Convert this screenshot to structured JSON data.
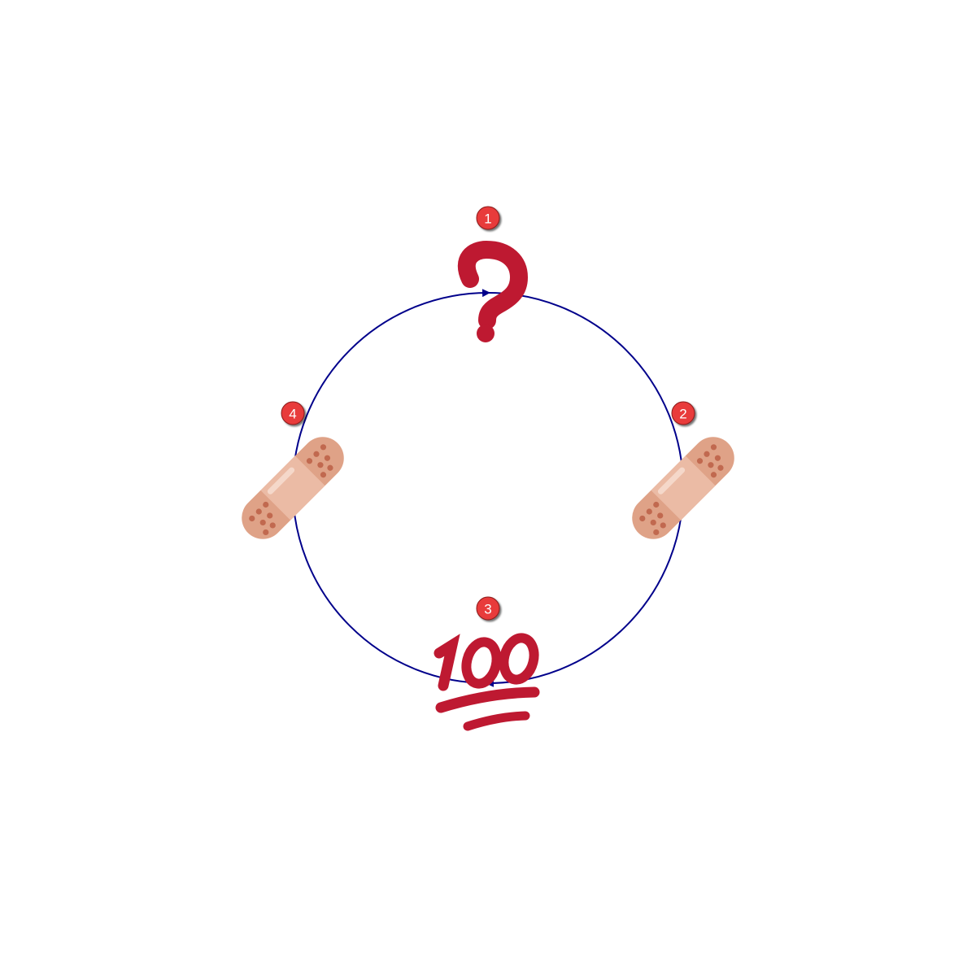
{
  "diagram": {
    "type": "cycle",
    "ring_color": "#00008B",
    "badge_color": "#E83A3A",
    "emoji_red": "#BE1931",
    "bandage_colors": {
      "pad": "#EBBBA5",
      "strip": "#DFA287",
      "dots": "#C1694F"
    },
    "nodes": [
      {
        "number": "1",
        "icon": "question-mark-icon"
      },
      {
        "number": "2",
        "icon": "adhesive-bandage-icon"
      },
      {
        "number": "3",
        "icon": "hundred-points-icon"
      },
      {
        "number": "4",
        "icon": "adhesive-bandage-icon"
      }
    ]
  }
}
